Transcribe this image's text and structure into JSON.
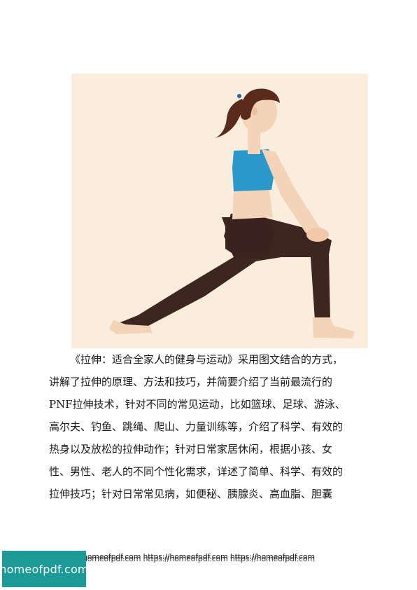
{
  "illustration": {
    "subject": "woman in lunge stretch",
    "colors": {
      "background": "#fbeddb",
      "top": "#2a98c9",
      "pants": "#3e2620",
      "hair": "#5a2b1c",
      "skin": "#f4d4b8"
    }
  },
  "paragraph": {
    "lines": [
      "《拉伸：适合全家人的健身与运动》采用图文结合的方式，",
      "讲解了拉伸的原理、方法和技巧，并简要介绍了当前最流行的",
      "PNF拉伸技术，针对不同的常见运动，比如篮球、足球、游泳、",
      "高尔夫、钓鱼、跳绳、爬山、力量训练等，介绍了科学、有效的",
      "热身以及放松的拉伸动作；针对日常家居休闲，根据小孩、女",
      "性、男性、老人的不同个性化需求，详述了简单、科学、有效的",
      "拉伸技巧；针对日常常见病，如便秘、胰腺炎、高血脂、胆囊"
    ]
  },
  "watermark": {
    "line1": "homeofpdf.com https://homeofpdf.com https://homeofpdf.com",
    "line2": "homeofpdf.com https://homeofpdf.com https://homeofpdf.com"
  },
  "logo": {
    "text": "homeofpdf.com",
    "color": "#1b9a97"
  }
}
